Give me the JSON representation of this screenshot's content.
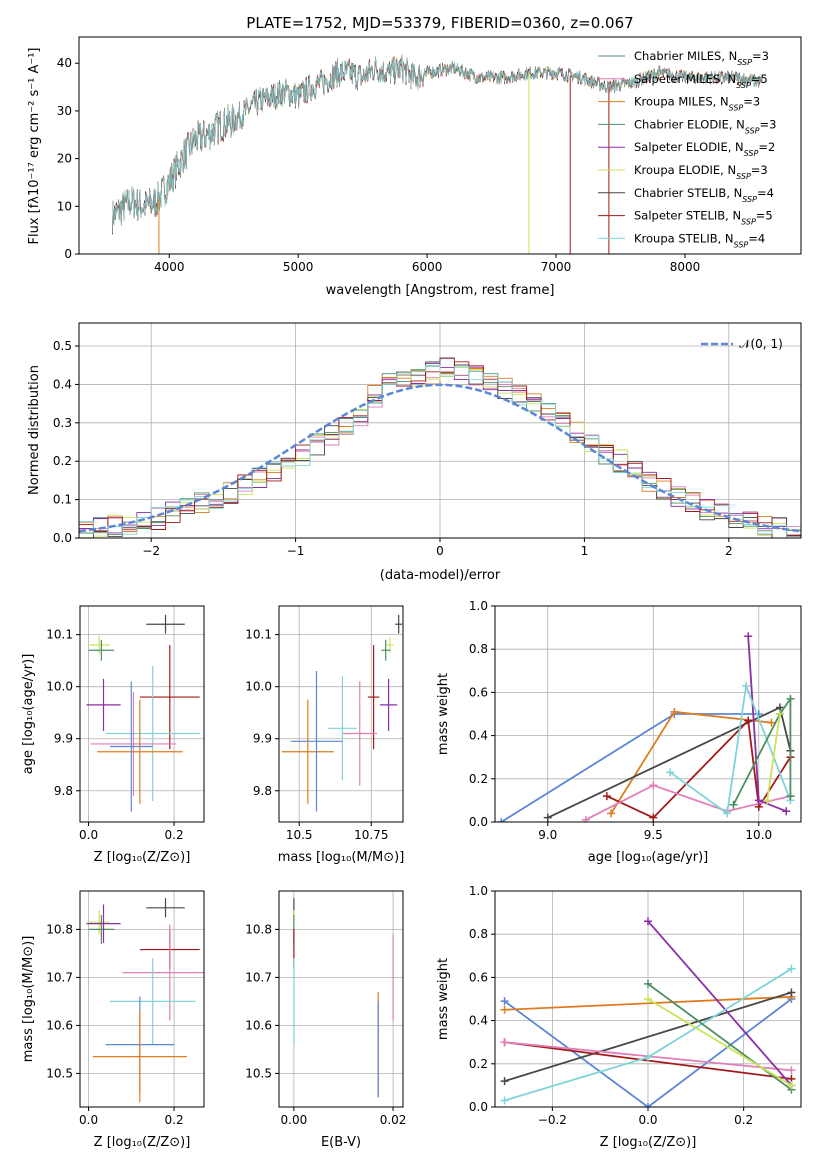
{
  "figure_title": "PLATE=1752, MJD=53379, FIBERID=0360, z=0.067",
  "colors": {
    "blue": "#5b87d6",
    "orange": "#e07b1f",
    "green": "#4f8f63",
    "purple": "#8b2fa6",
    "yellow": "#c9e35a",
    "dark": "#474747",
    "red": "#a31a1a",
    "pink": "#e07fb8",
    "cyan": "#7fd4d8"
  },
  "chart_data": [
    {
      "type": "line",
      "title": "PLATE=1752, MJD=53379, FIBERID=0360, z=0.067",
      "xlabel": "wavelength [Angstrom, rest frame]",
      "ylabel": "Flux [fλ10⁻¹⁷ erg cm⁻² s⁻¹ A⁻¹]",
      "xlim": [
        3300,
        8900
      ],
      "ylim": [
        0,
        45.5
      ],
      "xticks": [
        4000,
        5000,
        6000,
        7000,
        8000
      ],
      "yticks": [
        0,
        10,
        20,
        30,
        40
      ],
      "legend_position": "top-right",
      "series": [
        {
          "name": "Chabrier MILES, N_SSP=3",
          "color": "#4f8f63"
        },
        {
          "name": "Salpeter MILES, N_SSP=5",
          "color": "#e07fb8"
        },
        {
          "name": "Kroupa MILES, N_SSP=3",
          "color": "#e07b1f"
        },
        {
          "name": "Chabrier ELODIE, N_SSP=3",
          "color": "#4f8f63"
        },
        {
          "name": "Salpeter ELODIE, N_SSP=2",
          "color": "#8b2fa6"
        },
        {
          "name": "Kroupa ELODIE, N_SSP=3",
          "color": "#c9e35a"
        },
        {
          "name": "Chabrier STELIB, N_SSP=4",
          "color": "#474747"
        },
        {
          "name": "Salpeter STELIB, N_SSP=5",
          "color": "#a31a1a"
        },
        {
          "name": "Kroupa STELIB, N_SSP=4",
          "color": "#7fd4d8"
        }
      ],
      "continuum": [
        [
          3560,
          8
        ],
        [
          3700,
          11
        ],
        [
          3800,
          10
        ],
        [
          3900,
          11
        ],
        [
          4000,
          15
        ],
        [
          4100,
          20
        ],
        [
          4200,
          24
        ],
        [
          4300,
          25
        ],
        [
          4400,
          27
        ],
        [
          4500,
          28
        ],
        [
          4600,
          30
        ],
        [
          4700,
          32
        ],
        [
          4800,
          33
        ],
        [
          4900,
          34
        ],
        [
          5000,
          33
        ],
        [
          5100,
          35
        ],
        [
          5200,
          36
        ],
        [
          5300,
          38
        ],
        [
          5400,
          38
        ],
        [
          5500,
          37
        ],
        [
          5600,
          39
        ],
        [
          5700,
          38
        ],
        [
          5800,
          39
        ],
        [
          5900,
          37
        ],
        [
          6000,
          38
        ],
        [
          6200,
          39
        ],
        [
          6400,
          37
        ],
        [
          6600,
          37
        ],
        [
          6800,
          38
        ],
        [
          7000,
          38
        ],
        [
          7200,
          37
        ],
        [
          7400,
          35
        ],
        [
          7600,
          36
        ],
        [
          7800,
          38
        ],
        [
          8000,
          37
        ],
        [
          8200,
          37
        ],
        [
          8400,
          37
        ],
        [
          8600,
          36
        ]
      ],
      "drop_lines": [
        {
          "x": 3920,
          "color": "#e07b1f"
        },
        {
          "x": 6790,
          "color": "#c9e35a"
        },
        {
          "x": 7410,
          "color": "#a31a1a"
        },
        {
          "x": 7110,
          "color": "#a31a1a"
        }
      ]
    },
    {
      "type": "histogram",
      "xlabel": "(data-model)/error",
      "ylabel": "Normed distribution",
      "xlim": [
        -2.5,
        2.5
      ],
      "ylim": [
        0,
        0.56
      ],
      "xticks": [
        -2,
        -1,
        0,
        1,
        2
      ],
      "yticks": [
        0.0,
        0.1,
        0.2,
        0.3,
        0.4,
        0.5
      ],
      "grid": true,
      "legend_position": "top-right",
      "reference_curve": {
        "name": "𝒩(0, 1)",
        "color": "#5b87d6"
      },
      "bins": [
        -2.5,
        2.5,
        50
      ],
      "base_values": [
        0.02,
        0.025,
        0.03,
        0.035,
        0.045,
        0.05,
        0.065,
        0.08,
        0.09,
        0.1,
        0.12,
        0.14,
        0.155,
        0.175,
        0.2,
        0.215,
        0.245,
        0.27,
        0.3,
        0.32,
        0.37,
        0.4,
        0.41,
        0.42,
        0.43,
        0.44,
        0.43,
        0.42,
        0.4,
        0.39,
        0.37,
        0.36,
        0.33,
        0.3,
        0.275,
        0.25,
        0.22,
        0.2,
        0.17,
        0.145,
        0.13,
        0.11,
        0.09,
        0.075,
        0.06,
        0.05,
        0.04,
        0.035,
        0.025,
        0.02
      ],
      "series_colors": [
        "#4f8f63",
        "#e07fb8",
        "#e07b1f",
        "#8b2fa6",
        "#c9e35a",
        "#474747",
        "#a31a1a",
        "#7fd4d8"
      ]
    },
    {
      "type": "scatter",
      "xlabel": "Z [log₁₀(Z/Z⊙)]",
      "ylabel": "age  [log₁₀(age/yr)]",
      "xlim": [
        -0.02,
        0.27
      ],
      "ylim": [
        9.74,
        10.155
      ],
      "xticks": [
        0.0,
        0.2
      ],
      "yticks": [
        9.8,
        9.9,
        10.0,
        10.1
      ],
      "grid": true,
      "points": [
        {
          "x": 0.18,
          "xerr": 0.045,
          "y": 10.12,
          "yerr": 0.018,
          "color": "#474747"
        },
        {
          "x": 0.025,
          "xerr": 0.025,
          "y": 10.08,
          "yerr": 0.018,
          "color": "#c9e35a"
        },
        {
          "x": 0.03,
          "xerr": 0.03,
          "y": 10.07,
          "yerr": 0.02,
          "color": "#4f8f63"
        },
        {
          "x": 0.035,
          "xerr": 0.04,
          "y": 9.965,
          "yerr": 0.05,
          "color": "#8b2fa6"
        },
        {
          "x": 0.19,
          "xerr": 0.07,
          "y": 9.98,
          "yerr": 0.1,
          "color": "#a31a1a"
        },
        {
          "x": 0.15,
          "xerr": 0.11,
          "y": 9.91,
          "yerr": 0.13,
          "color": "#7fd4d8"
        },
        {
          "x": 0.105,
          "xerr": 0.1,
          "y": 9.89,
          "yerr": 0.1,
          "color": "#e07fb8"
        },
        {
          "x": 0.12,
          "xerr": 0.1,
          "y": 9.875,
          "yerr": 0.1,
          "color": "#e07b1f"
        },
        {
          "x": 0.1,
          "xerr": 0.05,
          "y": 9.885,
          "yerr": 0.125,
          "color": "#5b87d6"
        }
      ]
    },
    {
      "type": "scatter",
      "xlabel": "mass [log₁₀(M/M⊙)]",
      "ylabel": "",
      "xlim": [
        10.43,
        10.86
      ],
      "ylim": [
        9.74,
        10.155
      ],
      "xticks": [
        10.5,
        10.75
      ],
      "yticks": [
        9.8,
        9.9,
        10.0,
        10.1
      ],
      "grid": true,
      "points": [
        {
          "x": 10.845,
          "xerr": 0.012,
          "y": 10.12,
          "yerr": 0.018,
          "color": "#474747"
        },
        {
          "x": 10.815,
          "xerr": 0.012,
          "y": 10.08,
          "yerr": 0.015,
          "color": "#c9e35a"
        },
        {
          "x": 10.8,
          "xerr": 0.015,
          "y": 10.07,
          "yerr": 0.02,
          "color": "#4f8f63"
        },
        {
          "x": 10.81,
          "xerr": 0.03,
          "y": 9.965,
          "yerr": 0.05,
          "color": "#8b2fa6"
        },
        {
          "x": 10.758,
          "xerr": 0.02,
          "y": 9.98,
          "yerr": 0.1,
          "color": "#a31a1a"
        },
        {
          "x": 10.71,
          "xerr": 0.06,
          "y": 9.91,
          "yerr": 0.1,
          "color": "#e07fb8"
        },
        {
          "x": 10.65,
          "xerr": 0.05,
          "y": 9.92,
          "yerr": 0.1,
          "color": "#7fd4d8"
        },
        {
          "x": 10.53,
          "xerr": 0.09,
          "y": 9.875,
          "yerr": 0.1,
          "color": "#e07b1f"
        },
        {
          "x": 10.56,
          "xerr": 0.09,
          "y": 9.895,
          "yerr": 0.135,
          "color": "#5b87d6"
        }
      ]
    },
    {
      "type": "line",
      "xlabel": "age  [log₁₀(age/yr)]",
      "ylabel": "mass weight",
      "xlim": [
        8.75,
        10.2
      ],
      "ylim": [
        0,
        1
      ],
      "xticks": [
        9.0,
        9.5,
        10.0
      ],
      "yticks": [
        0.0,
        0.2,
        0.4,
        0.6,
        0.8,
        1.0
      ],
      "grid": true,
      "series": [
        {
          "color": "#5b87d6",
          "points": [
            [
              8.78,
              0.0
            ],
            [
              9.6,
              0.5
            ],
            [
              10.0,
              0.5
            ]
          ]
        },
        {
          "color": "#e07b1f",
          "points": [
            [
              9.3,
              0.04
            ],
            [
              9.6,
              0.51
            ],
            [
              10.06,
              0.46
            ]
          ]
        },
        {
          "color": "#474747",
          "points": [
            [
              9.0,
              0.02
            ],
            [
              10.1,
              0.53
            ],
            [
              10.15,
              0.33
            ]
          ]
        },
        {
          "color": "#a31a1a",
          "points": [
            [
              9.28,
              0.12
            ],
            [
              9.5,
              0.02
            ],
            [
              9.95,
              0.47
            ],
            [
              10.0,
              0.07
            ],
            [
              10.15,
              0.3
            ]
          ]
        },
        {
          "color": "#e07fb8",
          "points": [
            [
              9.18,
              0.01
            ],
            [
              9.5,
              0.17
            ],
            [
              9.85,
              0.05
            ],
            [
              10.15,
              0.12
            ]
          ]
        },
        {
          "color": "#8b2fa6",
          "points": [
            [
              9.95,
              0.86
            ],
            [
              10.0,
              0.1
            ],
            [
              10.13,
              0.05
            ]
          ]
        },
        {
          "color": "#7fd4d8",
          "points": [
            [
              9.58,
              0.23
            ],
            [
              9.85,
              0.04
            ],
            [
              9.94,
              0.63
            ],
            [
              10.15,
              0.1
            ]
          ]
        },
        {
          "color": "#4f8f63",
          "points": [
            [
              9.88,
              0.08
            ],
            [
              10.1,
              0.5
            ],
            [
              10.15,
              0.57
            ],
            [
              10.15,
              0.12
            ]
          ]
        },
        {
          "color": "#c9e35a",
          "points": [
            [
              10.04,
              0.1
            ],
            [
              10.1,
              0.5
            ]
          ]
        }
      ]
    },
    {
      "type": "scatter",
      "xlabel": "Z [log₁₀(Z/Z⊙)]",
      "ylabel": "mass [log₁₀(M/M⊙)]",
      "xlim": [
        -0.02,
        0.27
      ],
      "ylim": [
        10.43,
        10.88
      ],
      "xticks": [
        0.0,
        0.2
      ],
      "yticks": [
        10.5,
        10.6,
        10.7,
        10.8
      ],
      "grid": true,
      "points": [
        {
          "x": 0.18,
          "xerr": 0.045,
          "y": 10.845,
          "yerr": 0.02,
          "color": "#474747"
        },
        {
          "x": 0.025,
          "xerr": 0.025,
          "y": 10.815,
          "yerr": 0.025,
          "color": "#c9e35a"
        },
        {
          "x": 0.03,
          "xerr": 0.03,
          "y": 10.8,
          "yerr": 0.03,
          "color": "#4f8f63"
        },
        {
          "x": 0.035,
          "xerr": 0.04,
          "y": 10.812,
          "yerr": 0.04,
          "color": "#8b2fa6"
        },
        {
          "x": 0.19,
          "xerr": 0.07,
          "y": 10.758,
          "yerr": 0.04,
          "color": "#a31a1a"
        },
        {
          "x": 0.19,
          "xerr": 0.11,
          "y": 10.71,
          "yerr": 0.1,
          "color": "#e07fb8"
        },
        {
          "x": 0.15,
          "xerr": 0.1,
          "y": 10.65,
          "yerr": 0.09,
          "color": "#7fd4d8"
        },
        {
          "x": 0.12,
          "xerr": 0.08,
          "y": 10.56,
          "yerr": 0.1,
          "color": "#5b87d6"
        },
        {
          "x": 0.12,
          "xerr": 0.11,
          "y": 10.535,
          "yerr": 0.095,
          "color": "#e07b1f"
        }
      ]
    },
    {
      "type": "scatter",
      "xlabel": "E(B-V)",
      "ylabel": "",
      "xlim": [
        -0.003,
        0.022
      ],
      "ylim": [
        10.43,
        10.88
      ],
      "xticks": [
        0.0,
        0.02
      ],
      "yticks": [
        10.5,
        10.6,
        10.7,
        10.8
      ],
      "grid": true,
      "points": [
        {
          "x": 0.0,
          "xerr": 0,
          "y": 10.845,
          "yerr": 0.02,
          "color": "#474747"
        },
        {
          "x": 0.0,
          "xerr": 0,
          "y": 10.815,
          "yerr": 0.025,
          "color": "#c9e35a"
        },
        {
          "x": 0.0,
          "xerr": 0,
          "y": 10.8,
          "yerr": 0.03,
          "color": "#4f8f63"
        },
        {
          "x": 0.0,
          "xerr": 0,
          "y": 10.76,
          "yerr": 0.04,
          "color": "#a31a1a"
        },
        {
          "x": 0.0,
          "xerr": 0,
          "y": 10.65,
          "yerr": 0.09,
          "color": "#7fd4d8"
        },
        {
          "x": 0.017,
          "xerr": 0,
          "y": 10.56,
          "yerr": 0.11,
          "color": "#e07b1f"
        },
        {
          "x": 0.017,
          "xerr": 0,
          "y": 10.55,
          "yerr": 0.1,
          "color": "#5b87d6"
        },
        {
          "x": 0.02,
          "xerr": 0,
          "y": 10.7,
          "yerr": 0.09,
          "color": "#e07fb8"
        }
      ]
    },
    {
      "type": "line",
      "xlabel": "Z [log₁₀(Z/Z⊙)]",
      "ylabel": "mass weight",
      "xlim": [
        -0.32,
        0.32
      ],
      "ylim": [
        0,
        1
      ],
      "xticks": [
        -0.2,
        0.0,
        0.2
      ],
      "yticks": [
        0.0,
        0.2,
        0.4,
        0.6,
        0.8,
        1.0
      ],
      "grid": true,
      "series": [
        {
          "color": "#5b87d6",
          "points": [
            [
              -0.3,
              0.49
            ],
            [
              0.0,
              0.0
            ],
            [
              0.3,
              0.5
            ]
          ]
        },
        {
          "color": "#e07b1f",
          "points": [
            [
              -0.3,
              0.45
            ],
            [
              0.3,
              0.51
            ]
          ]
        },
        {
          "color": "#474747",
          "points": [
            [
              -0.3,
              0.12
            ],
            [
              0.3,
              0.53
            ]
          ]
        },
        {
          "color": "#a31a1a",
          "points": [
            [
              -0.3,
              0.3
            ],
            [
              0.3,
              0.13
            ]
          ]
        },
        {
          "color": "#e07fb8",
          "points": [
            [
              -0.3,
              0.3
            ],
            [
              0.3,
              0.17
            ]
          ]
        },
        {
          "color": "#8b2fa6",
          "points": [
            [
              0.0,
              0.86
            ],
            [
              0.3,
              0.1
            ]
          ]
        },
        {
          "color": "#7fd4d8",
          "points": [
            [
              -0.3,
              0.03
            ],
            [
              0.0,
              0.23
            ],
            [
              0.3,
              0.64
            ]
          ]
        },
        {
          "color": "#4f8f63",
          "points": [
            [
              0.0,
              0.57
            ],
            [
              0.3,
              0.08
            ]
          ]
        },
        {
          "color": "#c9e35a",
          "points": [
            [
              0.0,
              0.5
            ],
            [
              0.3,
              0.1
            ]
          ]
        }
      ]
    }
  ]
}
